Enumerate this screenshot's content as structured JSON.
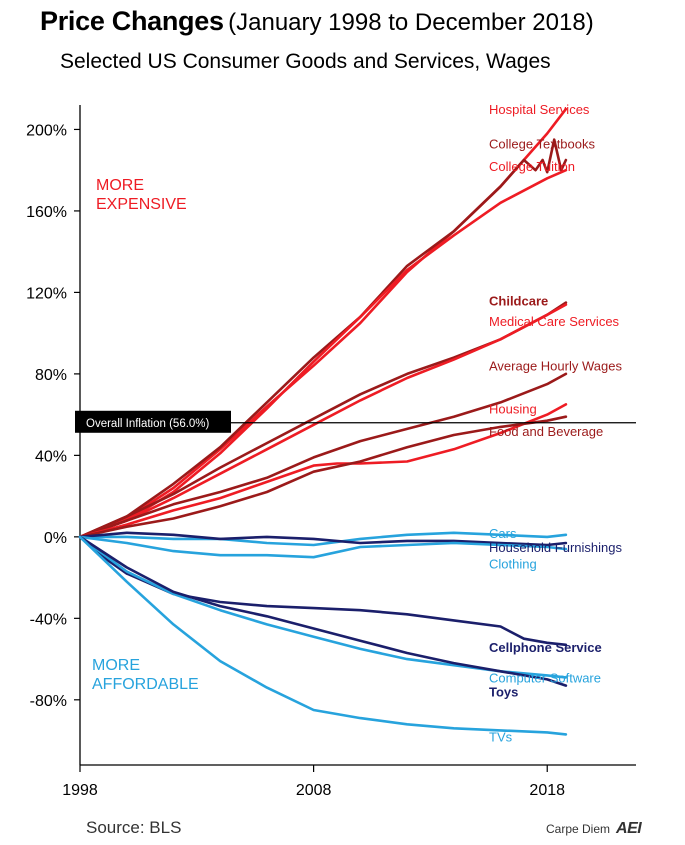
{
  "title": "Price Changes",
  "title_dates": "(January 1998 to December 2018)",
  "subtitle": "Selected US Consumer Goods and Services, Wages",
  "source": "Source: BLS",
  "credit": "Carpe Diem",
  "credit_logo": "AEI",
  "chart_data": {
    "type": "line",
    "xlim": [
      1998,
      2021.8
    ],
    "ylim": [
      -112,
      212
    ],
    "x_ticks": [
      1998,
      2008,
      2018
    ],
    "x_tick_labels": [
      "1998",
      "2008",
      "2018"
    ],
    "y_ticks": [
      -80,
      -40,
      0,
      40,
      80,
      120,
      160,
      200
    ],
    "y_tick_labels": [
      "-80%",
      "-40%",
      "0%",
      "40%",
      "80%",
      "120%",
      "160%",
      "200%"
    ],
    "grid": false,
    "reference_line": {
      "label": "Overall Inflation (56.0%)",
      "value": 56.0
    },
    "annotations": [
      {
        "text": "MORE\nEXPENSIVE",
        "color": "#ee1c24"
      },
      {
        "text": "MORE\nAFFORDABLE",
        "color": "#27a3dd"
      }
    ],
    "series": [
      {
        "name": "Hospital Services",
        "color": "#ee1c24",
        "bold": false,
        "label_y": 210,
        "x": [
          1998,
          2000,
          2002,
          2004,
          2006,
          2008,
          2010,
          2012,
          2014,
          2016,
          2018,
          2018.8
        ],
        "y": [
          0,
          9,
          24,
          43,
          64,
          84,
          105,
          130,
          150,
          172,
          198,
          210
        ]
      },
      {
        "name": "College Textbooks",
        "color": "#9b1a1a",
        "bold": false,
        "label_y": 193,
        "x": [
          1998,
          2000,
          2002,
          2004,
          2006,
          2008,
          2010,
          2012,
          2014,
          2016,
          2017,
          2017.5,
          2017.8,
          2018,
          2018.3,
          2018.6,
          2018.8
        ],
        "y": [
          0,
          10,
          26,
          44,
          66,
          88,
          108,
          133,
          150,
          172,
          185,
          180,
          185,
          179,
          195,
          180,
          185
        ]
      },
      {
        "name": "College Tuition",
        "color": "#ee1c24",
        "bold": false,
        "label_y": 182,
        "x": [
          1998,
          2000,
          2002,
          2004,
          2006,
          2008,
          2010,
          2012,
          2014,
          2016,
          2018,
          2018.8
        ],
        "y": [
          0,
          8,
          22,
          41,
          63,
          86,
          108,
          131,
          148,
          164,
          176,
          180
        ]
      },
      {
        "name": "Childcare",
        "color": "#9b1a1a",
        "bold": true,
        "label_y": 116,
        "x": [
          1998,
          2000,
          2002,
          2004,
          2006,
          2008,
          2010,
          2012,
          2014,
          2016,
          2018,
          2018.8
        ],
        "y": [
          0,
          10,
          21,
          34,
          46,
          58,
          70,
          80,
          88,
          97,
          109,
          115
        ]
      },
      {
        "name": "Medical Care Services",
        "color": "#ee1c24",
        "bold": false,
        "label_y": 106,
        "x": [
          1998,
          2000,
          2002,
          2004,
          2006,
          2008,
          2010,
          2012,
          2014,
          2016,
          2018,
          2018.8
        ],
        "y": [
          0,
          8,
          19,
          31,
          43,
          55,
          67,
          78,
          87,
          97,
          109,
          114
        ]
      },
      {
        "name": "Average Hourly Wages",
        "color": "#9b1a1a",
        "bold": false,
        "label_y": 84,
        "x": [
          1998,
          2000,
          2002,
          2004,
          2006,
          2008,
          2010,
          2012,
          2014,
          2016,
          2018,
          2018.8
        ],
        "y": [
          0,
          8,
          16,
          22,
          29,
          39,
          47,
          53,
          59,
          66,
          75,
          80
        ]
      },
      {
        "name": "Housing",
        "color": "#ee1c24",
        "bold": false,
        "label_y": 63,
        "x": [
          1998,
          2000,
          2002,
          2004,
          2006,
          2008,
          2009,
          2010,
          2012,
          2014,
          2016,
          2018,
          2018.8
        ],
        "y": [
          0,
          6,
          13,
          19,
          27,
          35,
          36,
          36,
          37,
          43,
          51,
          60,
          65
        ]
      },
      {
        "name": "Food and Beverage",
        "color": "#9b1a1a",
        "bold": false,
        "label_y": 52,
        "x": [
          1998,
          2000,
          2002,
          2004,
          2006,
          2008,
          2010,
          2012,
          2014,
          2016,
          2018,
          2018.8
        ],
        "y": [
          0,
          5,
          9,
          15,
          22,
          32,
          37,
          44,
          50,
          54,
          57,
          59
        ]
      },
      {
        "name": "Cars",
        "color": "#27a3dd",
        "bold": false,
        "label_y": 2,
        "x": [
          1998,
          2000,
          2002,
          2004,
          2006,
          2008,
          2010,
          2012,
          2014,
          2016,
          2018,
          2018.8
        ],
        "y": [
          0,
          0,
          -1,
          -1,
          -3,
          -4,
          -1,
          1,
          2,
          1,
          0,
          1
        ]
      },
      {
        "name": "Household Furnishings",
        "color": "#1b1f6b",
        "bold": false,
        "label_y": -5,
        "x": [
          1998,
          2000,
          2002,
          2004,
          2006,
          2008,
          2010,
          2012,
          2014,
          2016,
          2018,
          2018.8
        ],
        "y": [
          0,
          2,
          1,
          -1,
          0,
          -1,
          -3,
          -2,
          -2,
          -3,
          -4,
          -3
        ]
      },
      {
        "name": "Clothing",
        "color": "#27a3dd",
        "bold": false,
        "label_y": -13,
        "x": [
          1998,
          2000,
          2002,
          2004,
          2006,
          2008,
          2010,
          2012,
          2014,
          2016,
          2018,
          2018.8
        ],
        "y": [
          0,
          -3,
          -7,
          -9,
          -9,
          -10,
          -5,
          -4,
          -3,
          -4,
          -5,
          -6
        ]
      },
      {
        "name": "Cellphone Service",
        "color": "#1b1f6b",
        "bold": true,
        "label_y": -54,
        "x": [
          1998,
          1999,
          2000,
          2002,
          2004,
          2006,
          2008,
          2010,
          2012,
          2014,
          2016,
          2017,
          2018,
          2018.8
        ],
        "y": [
          0,
          -10,
          -18,
          -28,
          -32,
          -34,
          -35,
          -36,
          -38,
          -41,
          -44,
          -50,
          -52,
          -53
        ]
      },
      {
        "name": "Computer Software",
        "color": "#27a3dd",
        "bold": false,
        "label_y": -69,
        "x": [
          1998,
          2000,
          2002,
          2004,
          2006,
          2008,
          2010,
          2012,
          2014,
          2016,
          2018,
          2018.8
        ],
        "y": [
          0,
          -17,
          -28,
          -36,
          -43,
          -49,
          -55,
          -60,
          -63,
          -66,
          -68,
          -69
        ]
      },
      {
        "name": "Toys",
        "color": "#1b1f6b",
        "bold": true,
        "label_y": -76,
        "x": [
          1998,
          2000,
          2002,
          2004,
          2006,
          2008,
          2010,
          2012,
          2014,
          2016,
          2018,
          2018.8
        ],
        "y": [
          0,
          -15,
          -27,
          -34,
          -39,
          -45,
          -51,
          -57,
          -62,
          -66,
          -70,
          -73
        ]
      },
      {
        "name": "TVs",
        "color": "#27a3dd",
        "bold": false,
        "label_y": -98,
        "x": [
          1998,
          2000,
          2002,
          2004,
          2006,
          2008,
          2010,
          2012,
          2014,
          2016,
          2018,
          2018.8
        ],
        "y": [
          0,
          -22,
          -43,
          -61,
          -74,
          -85,
          -89,
          -92,
          -94,
          -95,
          -96,
          -97
        ]
      }
    ]
  }
}
